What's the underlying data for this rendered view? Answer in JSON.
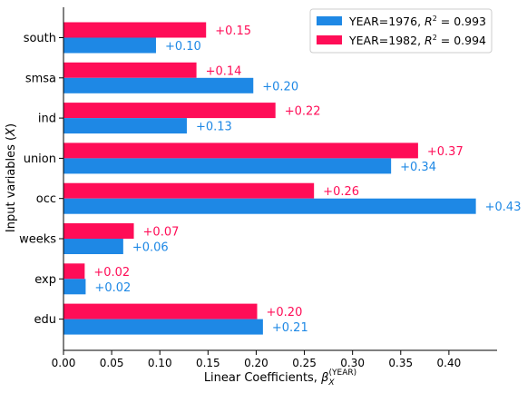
{
  "chart_data": {
    "type": "bar",
    "orientation": "horizontal",
    "categories": [
      "south",
      "smsa",
      "ind",
      "union",
      "occ",
      "weeks",
      "exp",
      "edu"
    ],
    "series": [
      {
        "name": "YEAR=1982",
        "r2": "0.994",
        "color": "#ff0d57",
        "values": [
          0.148,
          0.138,
          0.22,
          0.368,
          0.26,
          0.073,
          0.022,
          0.201
        ],
        "labels": [
          "+0.15",
          "+0.14",
          "+0.22",
          "+0.37",
          "+0.26",
          "+0.07",
          "+0.02",
          "+0.20"
        ]
      },
      {
        "name": "YEAR=1976",
        "r2": "0.993",
        "color": "#1e88e5",
        "values": [
          0.096,
          0.197,
          0.128,
          0.34,
          0.428,
          0.062,
          0.023,
          0.207
        ],
        "labels": [
          "+0.10",
          "+0.20",
          "+0.13",
          "+0.34",
          "+0.43",
          "+0.06",
          "+0.02",
          "+0.21"
        ]
      }
    ],
    "xlabel": "Linear Coefficients, ",
    "xlabel_symbol": "β",
    "xlabel_sub": "X",
    "xlabel_sup": "(YEAR)",
    "ylabel": "Input variables (",
    "ylabel_symbol": "X",
    "ylabel_end": ")",
    "xlim": [
      0,
      0.45
    ],
    "xticks": [
      "0.00",
      "0.05",
      "0.10",
      "0.15",
      "0.20",
      "0.25",
      "0.30",
      "0.35",
      "0.40"
    ],
    "xtick_values": [
      0,
      0.05,
      0.1,
      0.15,
      0.2,
      0.25,
      0.3,
      0.35,
      0.4
    ],
    "legend_position": "top-right",
    "legend_r2_symbol": "R",
    "grid": false
  }
}
